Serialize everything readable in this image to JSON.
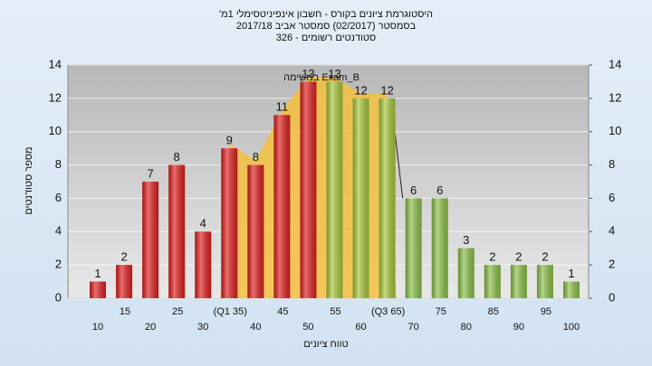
{
  "chart_data": {
    "type": "bar",
    "title": "'היסטוגרמת ציונים בקורס - חשבון אינפיניטסימלי 1מ",
    "subtitle": [
      "בסמסטר  (02/2017)  סמסטר אביב 2017/18",
      "סטודנטים רשומים - 326"
    ],
    "annotation": "במשימה Exam_B",
    "x_label": "טווח ציונים",
    "y_label": "מספר סטודנטים",
    "categories": [
      "10",
      "15",
      "20",
      "25",
      "30",
      "(Q1 35)",
      "40",
      "45",
      "50",
      "55",
      "60",
      "(Q3 65)",
      "70",
      "75",
      "80",
      "85",
      "90",
      "95",
      "100"
    ],
    "values": [
      1,
      2,
      7,
      8,
      4,
      9,
      8,
      11,
      13,
      13,
      12,
      12,
      6,
      6,
      3,
      2,
      2,
      2,
      1
    ],
    "colors": [
      "#e02020",
      "#e02020",
      "#e02020",
      "#e02020",
      "#e02020",
      "#e02020",
      "#e02020",
      "#e02020",
      "#e02020",
      "#a8c83c",
      "#a8c83c",
      "#a8c83c",
      "#8cc04a",
      "#8cc04a",
      "#8cc04a",
      "#8cc04a",
      "#8cc04a",
      "#8cc04a",
      "#8cc04a"
    ],
    "ylim": [
      0,
      14
    ],
    "yticks": [
      0,
      2,
      4,
      6,
      8,
      10,
      12,
      14
    ],
    "y2lim": [
      0,
      14
    ],
    "y2ticks": [
      0,
      2,
      4,
      6,
      8,
      10,
      12,
      14
    ],
    "grid": true
  }
}
